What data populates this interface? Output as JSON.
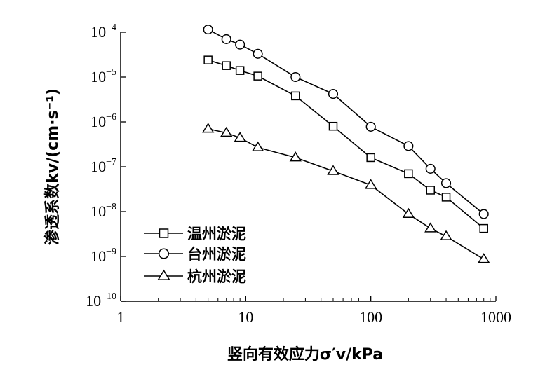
{
  "chart_data": {
    "type": "line",
    "xlabel": "竖向有效应力σ′v/kPa",
    "ylabel": "渗透系数kv/(cm·s⁻¹)",
    "x_scale": "log",
    "y_scale": "log",
    "xlim": [
      1,
      1000
    ],
    "ylim": [
      1e-10,
      0.0001
    ],
    "x_ticks": [
      1,
      10,
      100,
      1000
    ],
    "x_tick_labels": [
      "1",
      "10",
      "100",
      "1000"
    ],
    "y_ticks": [
      1e-10,
      1e-09,
      1e-08,
      1e-07,
      1e-06,
      1e-05,
      0.0001
    ],
    "y_tick_labels": [
      {
        "base": "10",
        "exp": "−10"
      },
      {
        "base": "10",
        "exp": "−9"
      },
      {
        "base": "10",
        "exp": "−8"
      },
      {
        "base": "10",
        "exp": "−7"
      },
      {
        "base": "10",
        "exp": "−6"
      },
      {
        "base": "10",
        "exp": "−5"
      },
      {
        "base": "10",
        "exp": "−4"
      }
    ],
    "grid": false,
    "legend_position": "bottom-left",
    "series": [
      {
        "name": "温州淤泥",
        "marker": "square",
        "x": [
          5,
          7,
          9,
          12.5,
          25,
          50,
          100,
          200,
          300,
          400,
          800
        ],
        "y": [
          2.4e-05,
          1.8e-05,
          1.4e-05,
          1.05e-05,
          3.8e-06,
          8e-07,
          1.6e-07,
          7e-08,
          3e-08,
          2.1e-08,
          4.2e-09
        ]
      },
      {
        "name": "台州淤泥",
        "marker": "circle",
        "x": [
          5,
          7,
          9,
          12.5,
          25,
          50,
          100,
          200,
          300,
          400,
          800
        ],
        "y": [
          0.000115,
          7e-05,
          5.3e-05,
          3.3e-05,
          1e-05,
          4.2e-06,
          7.8e-07,
          2.9e-07,
          9e-08,
          4.3e-08,
          8.8e-09
        ]
      },
      {
        "name": "杭州淤泥",
        "marker": "triangle",
        "x": [
          5,
          7,
          9,
          12.5,
          25,
          50,
          100,
          200,
          300,
          400,
          800
        ],
        "y": [
          7e-07,
          5.7e-07,
          4.4e-07,
          2.7e-07,
          1.6e-07,
          8e-08,
          3.9e-08,
          8.8e-09,
          4.2e-09,
          2.8e-09,
          8.7e-10
        ]
      }
    ]
  }
}
